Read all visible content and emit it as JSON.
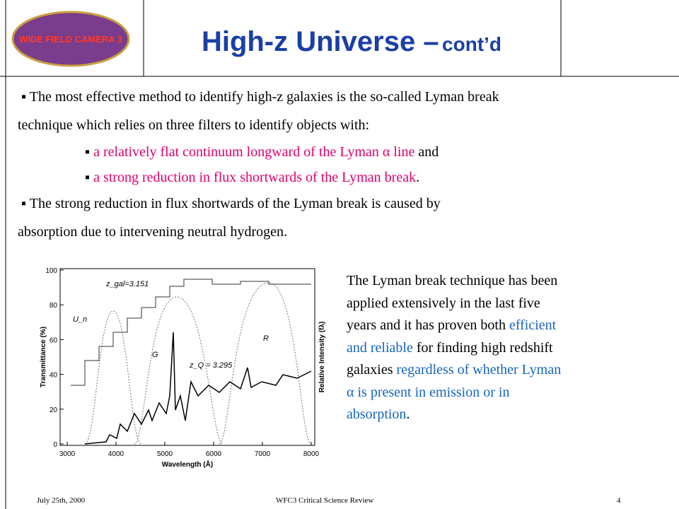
{
  "header": {
    "title": "High-z Universe –",
    "title_small": "cont’d",
    "logo_text": "WIDE FIELD CAMERA 3"
  },
  "body": [
    [
      {
        "text": "▪ The most effective method to identify high-z galaxies is the so-called Lyman break"
      }
    ],
    [
      {
        "text": "technique which relies on three filters to identify objects with:"
      }
    ],
    [
      {
        "text": "▪ "
      },
      {
        "text": "a relatively flat continuum longward of  the Lyman α  line",
        "tone": "pink"
      },
      {
        "text": " and"
      }
    ],
    [
      {
        "text": "▪ "
      },
      {
        "text": "a strong reduction in flux shortwards of the Lyman break",
        "tone": "pink"
      },
      {
        "text": "."
      }
    ],
    [
      {
        "text": "▪ The strong reduction in flux shortwards of the Lyman break is caused by"
      }
    ],
    [
      {
        "text": "absorption due to intervening neutral hydrogen."
      }
    ]
  ],
  "side_text": [
    [
      {
        "text": "The Lyman break technique has been"
      }
    ],
    [
      {
        "text": "applied extensively in the last five"
      }
    ],
    [
      {
        "text": "years and it has proven both "
      },
      {
        "text": "efficient",
        "tone": "blue"
      }
    ],
    [
      {
        "text": "and reliable",
        "tone": "blue"
      },
      {
        "text": " for finding high redshift"
      }
    ],
    [
      {
        "text": "galaxies "
      },
      {
        "text": "regardless of whether Lyman",
        "tone": "blue"
      }
    ],
    [
      {
        "text": "α is present in emission or in",
        "tone": "blue"
      }
    ],
    [
      {
        "text": "absorption",
        "tone": "blue"
      },
      {
        "text": "."
      }
    ]
  ],
  "figure": {
    "xlabel": "Wavelength (Å)",
    "ylabel": "Transmittance (%)",
    "y2label": "Relative Intensity (fλ)",
    "xlim": [
      3000,
      8000
    ],
    "xticks": [
      3000,
      4000,
      5000,
      6000,
      7000,
      8000
    ],
    "ylim": [
      0,
      100
    ],
    "yticks": [
      0,
      20,
      40,
      60,
      80,
      100
    ],
    "annotations": [
      "z_gal=3.151",
      "z_Q = 3.295",
      "U_n",
      "G",
      "R"
    ]
  },
  "footer": {
    "date": "July 25th, 2000",
    "event": "WFC3 Critical Science Review",
    "page": "4"
  }
}
